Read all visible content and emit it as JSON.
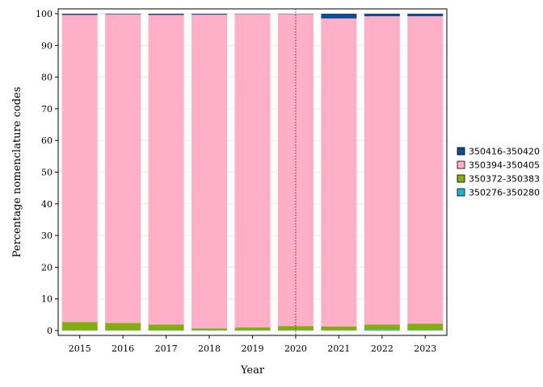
{
  "chart_data": {
    "type": "bar",
    "stacked": true,
    "xlabel": "Year",
    "ylabel": "Percentage nomenclature codes",
    "ylim": [
      0,
      100
    ],
    "yticks": [
      0,
      10,
      20,
      30,
      40,
      50,
      60,
      70,
      80,
      90,
      100
    ],
    "categories": [
      "2015",
      "2016",
      "2017",
      "2018",
      "2019",
      "2020",
      "2021",
      "2022",
      "2023"
    ],
    "reference_line": {
      "x": "2020",
      "style": "dotted",
      "color": "#8b1a4a"
    },
    "legend": {
      "placement": "right"
    },
    "series": [
      {
        "name": "350276-350280",
        "color": "#1fb4d2",
        "values": [
          0.1,
          0.1,
          0.1,
          0.1,
          0.1,
          0.1,
          0.1,
          0.3,
          0.2
        ]
      },
      {
        "name": "350372-350383",
        "color": "#85ad10",
        "values": [
          2.6,
          2.3,
          1.8,
          0.6,
          0.9,
          1.3,
          1.2,
          1.6,
          2.0
        ]
      },
      {
        "name": "350394-350405",
        "color": "#ffb0c8",
        "values": [
          96.9,
          97.4,
          97.7,
          99.0,
          98.9,
          98.5,
          97.2,
          97.3,
          97.0
        ]
      },
      {
        "name": "350416-350420",
        "color": "#0e4d92",
        "values": [
          0.4,
          0.2,
          0.4,
          0.3,
          0.1,
          0.1,
          1.5,
          0.8,
          0.8
        ]
      }
    ]
  }
}
